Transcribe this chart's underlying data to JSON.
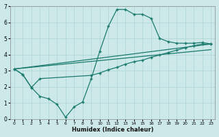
{
  "xlabel": "Humidex (Indice chaleur)",
  "background_color": "#cce8e8",
  "grid_color": "#b0d8d8",
  "line_color": "#1a7a6e",
  "xlim": [
    -0.5,
    23.5
  ],
  "ylim": [
    0,
    7
  ],
  "xticks": [
    0,
    1,
    2,
    3,
    4,
    5,
    6,
    7,
    8,
    9,
    10,
    11,
    12,
    13,
    14,
    15,
    16,
    17,
    18,
    19,
    20,
    21,
    22,
    23
  ],
  "yticks": [
    0,
    1,
    2,
    3,
    4,
    5,
    6,
    7
  ],
  "line1_x": [
    0,
    1,
    2,
    3,
    4,
    5,
    6,
    7,
    8,
    9,
    10,
    11,
    12,
    13,
    14,
    15,
    16,
    17,
    18,
    19,
    20,
    21,
    22,
    23
  ],
  "line1_y": [
    3.1,
    2.75,
    1.95,
    1.4,
    1.25,
    0.9,
    0.1,
    0.75,
    1.05,
    2.5,
    4.2,
    5.75,
    6.8,
    6.8,
    6.5,
    6.5,
    6.25,
    5.0,
    4.8,
    4.7,
    4.7,
    4.7,
    4.75,
    4.65
  ],
  "line2_x": [
    0,
    1,
    2,
    3,
    9,
    10,
    11,
    12,
    13,
    14,
    15,
    16,
    17,
    18,
    19,
    20,
    21,
    22,
    23
  ],
  "line2_y": [
    3.1,
    2.75,
    1.95,
    2.5,
    2.7,
    2.85,
    3.05,
    3.2,
    3.4,
    3.55,
    3.65,
    3.82,
    3.97,
    4.12,
    4.27,
    4.42,
    4.55,
    4.65,
    4.65
  ],
  "line3_x": [
    0,
    23
  ],
  "line3_y": [
    3.1,
    4.65
  ],
  "line4_x": [
    0,
    23
  ],
  "line4_y": [
    3.1,
    4.3
  ]
}
